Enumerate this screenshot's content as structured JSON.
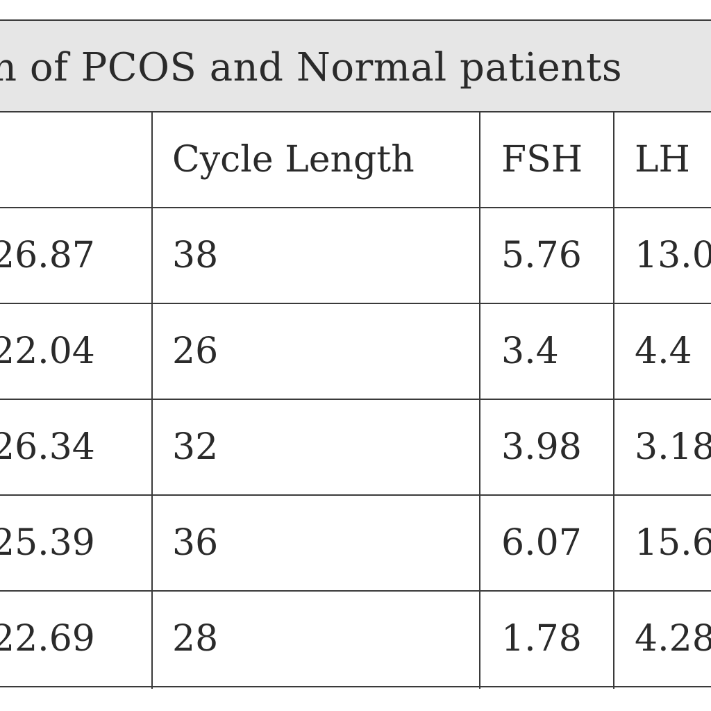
{
  "table": {
    "caption": "n of PCOS and Normal patients",
    "headers": [
      "",
      "Cycle Length",
      "FSH",
      "LH"
    ],
    "rows": [
      [
        "26.87",
        "38",
        "5.76",
        "13.0"
      ],
      [
        "22.04",
        "26",
        "3.4",
        "4.4"
      ],
      [
        "26.34",
        "32",
        "3.98",
        "3.18"
      ],
      [
        "25.39",
        "36",
        "6.07",
        "15.6"
      ],
      [
        "22.69",
        "28",
        "1.78",
        "4.28"
      ]
    ]
  }
}
